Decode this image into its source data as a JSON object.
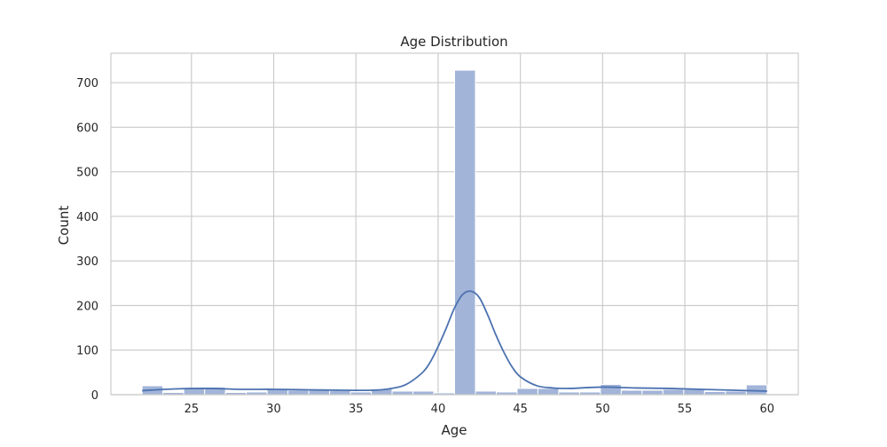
{
  "chart_data": {
    "type": "bar",
    "subtype": "histogram-with-kde",
    "title": "Age Distribution",
    "xlabel": "Age",
    "ylabel": "Count",
    "xlim": [
      20.1,
      61.9
    ],
    "ylim": [
      0,
      766
    ],
    "xticks": [
      25,
      30,
      35,
      40,
      45,
      50,
      55,
      60
    ],
    "yticks": [
      0,
      100,
      200,
      300,
      400,
      500,
      600,
      700
    ],
    "grid": true,
    "legend": "none",
    "colors": {
      "bar_fill": "#a2b4d8",
      "bar_edge": "#ffffff",
      "kde_line": "#4c72b0",
      "grid": "#cccccc",
      "frame": "#cccccc"
    },
    "bins": {
      "start": 22,
      "width": 1.2667,
      "counts": [
        20,
        5,
        14,
        17,
        5,
        6,
        12,
        10,
        10,
        9,
        6,
        13,
        8,
        8,
        4,
        728,
        8,
        6,
        14,
        14,
        6,
        6,
        23,
        10,
        10,
        12,
        12,
        7,
        8,
        22
      ]
    },
    "kde": {
      "x": [
        22,
        24,
        26,
        28,
        30,
        32,
        34,
        36,
        37,
        38,
        39,
        39.5,
        40,
        40.5,
        41,
        41.5,
        42,
        42.5,
        43,
        43.5,
        44,
        44.5,
        45,
        46,
        47,
        48,
        50,
        52,
        54,
        56,
        58,
        60
      ],
      "y": [
        9,
        13,
        14,
        12,
        12,
        11,
        10,
        10,
        13,
        22,
        48,
        72,
        108,
        150,
        195,
        225,
        232,
        218,
        180,
        135,
        95,
        62,
        40,
        20,
        15,
        14,
        17,
        15,
        14,
        12,
        10,
        8
      ]
    }
  }
}
